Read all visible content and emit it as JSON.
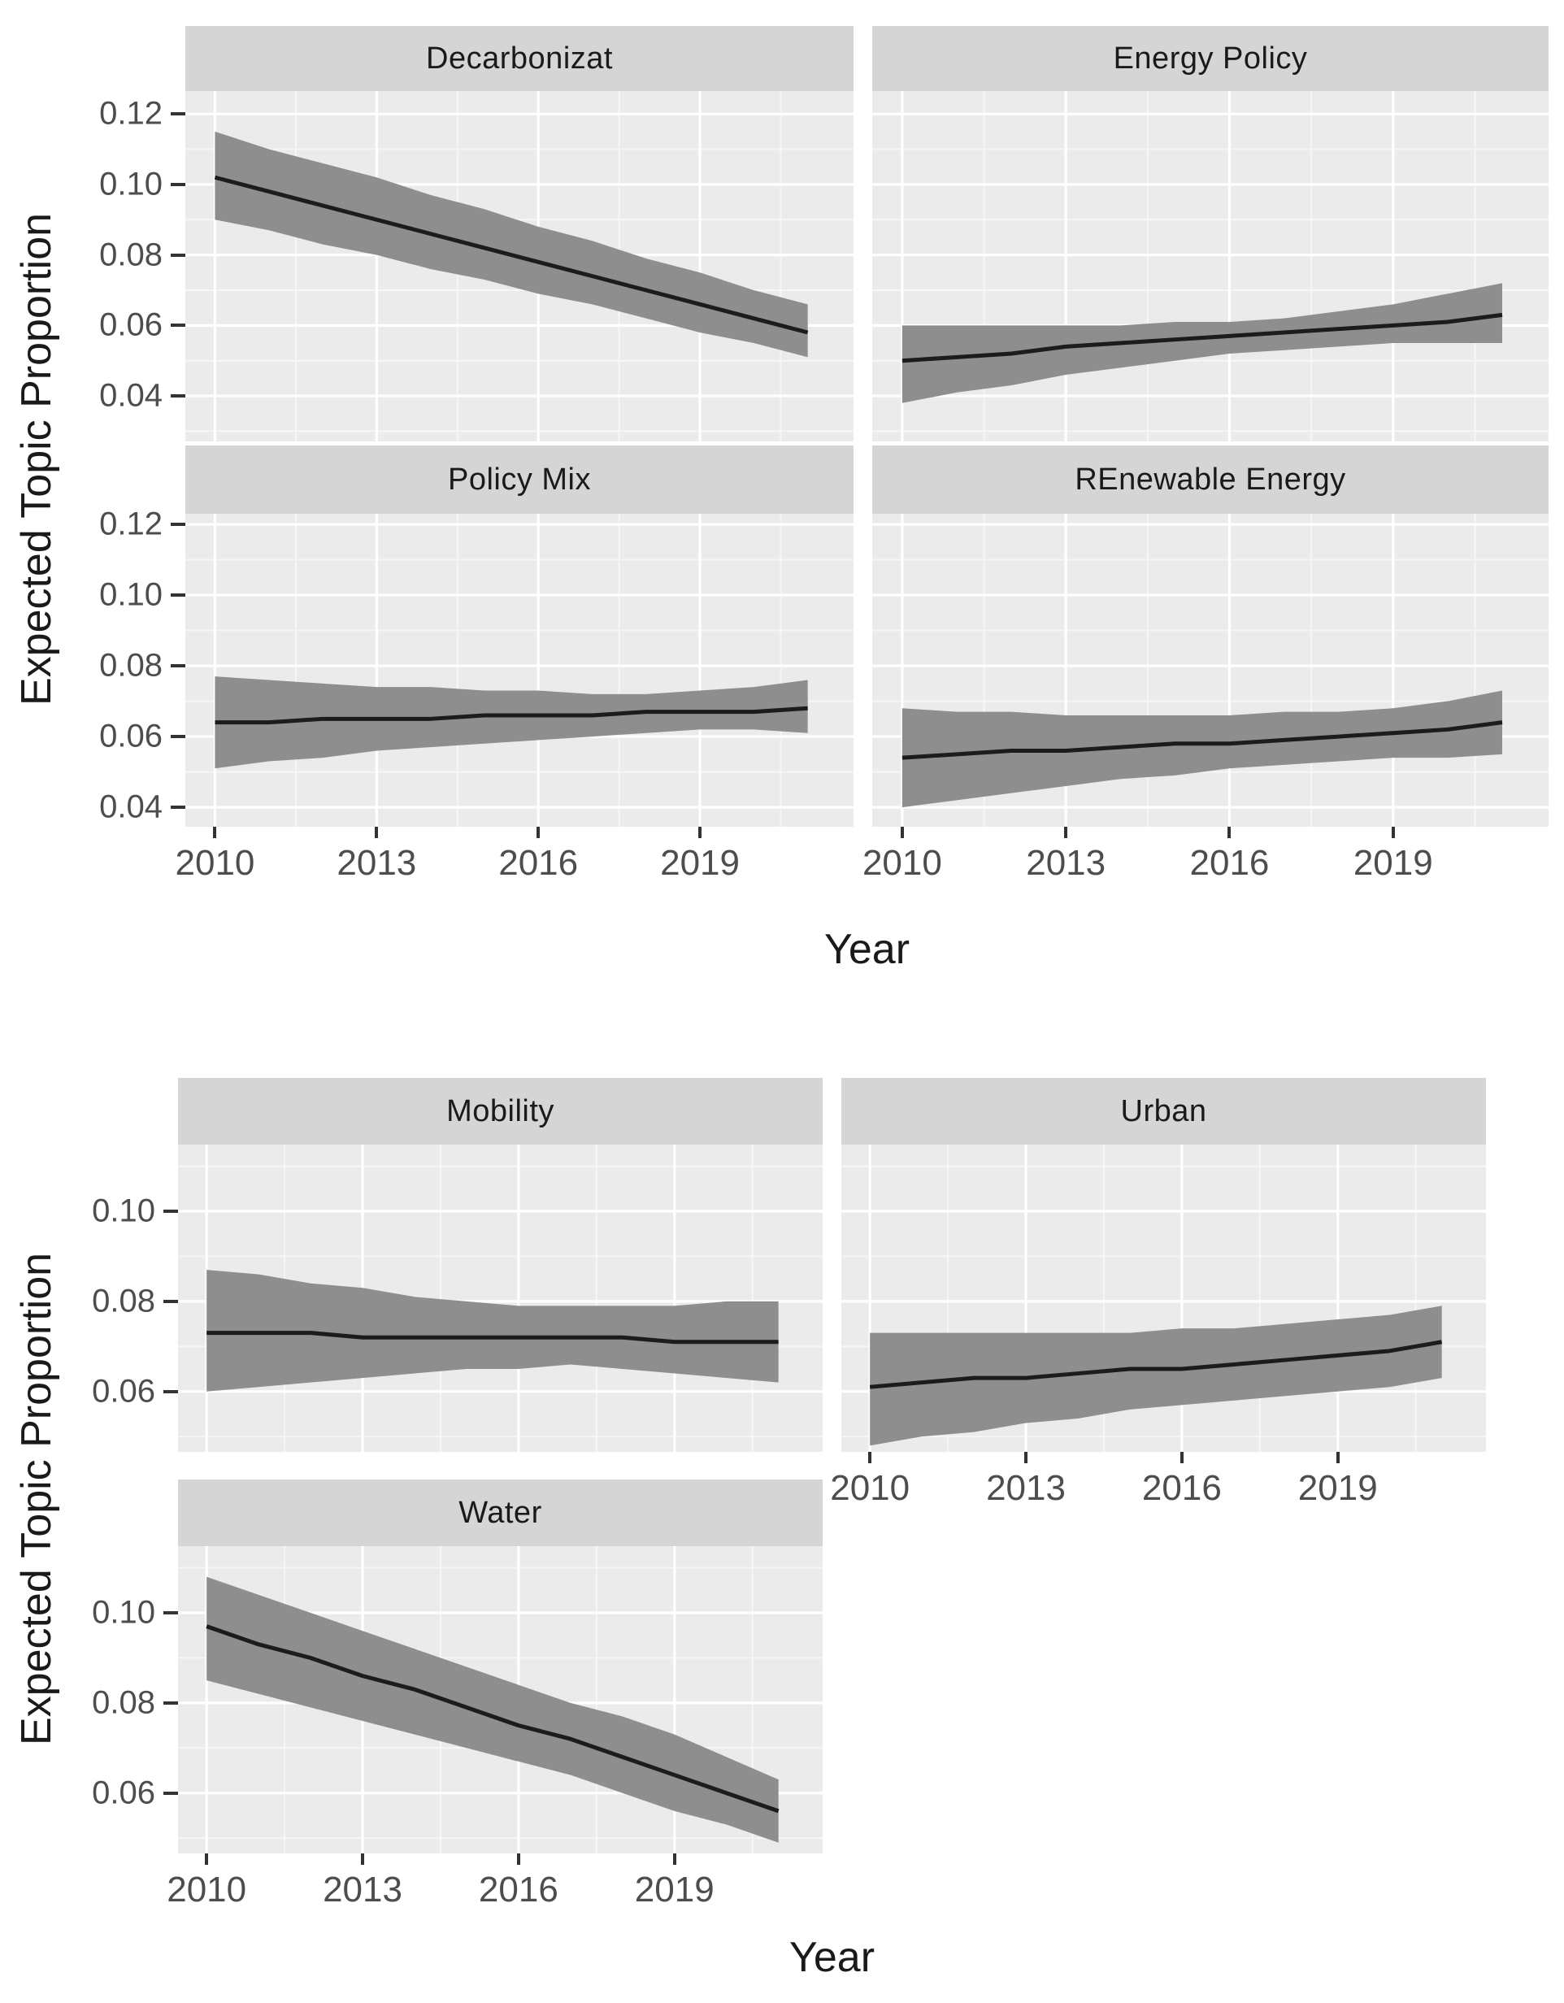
{
  "page_title": "Expected Topic Proportion trends by topic",
  "colors": {
    "panel_bg": "#ebebeb",
    "strip_bg": "#d5d5d5",
    "grid_major": "#ffffff",
    "grid_minor": "#f6f6f6",
    "band": "#8e8e8e",
    "line": "#1c1c1c",
    "tick_mark": "#333333",
    "tick_text": "#4d4d4d",
    "axis_title_text": "#1a1a1a"
  },
  "chart_data": [
    {
      "type": "line",
      "ribbon": true,
      "title": "",
      "ylabel": "Expected Topic Proportion",
      "xlabel": "Year",
      "legend_position": "none",
      "grid": true,
      "x": [
        2010,
        2011,
        2012,
        2013,
        2014,
        2015,
        2016,
        2017,
        2018,
        2019,
        2020,
        2021
      ],
      "x_breaks": [
        2010,
        2013,
        2016,
        2019
      ],
      "x_minor_breaks": [
        2011.5,
        2014.5,
        2017.5,
        2020.5
      ],
      "xlim": [
        2009.45,
        2021.85
      ],
      "y_breaks": [
        0.12,
        0.1,
        0.08,
        0.06,
        0.04
      ],
      "y_minor_breaks": [
        0.13,
        0.11,
        0.09,
        0.07,
        0.05,
        0.03
      ],
      "rows": [
        {
          "ylim": [
            0.0271,
            0.1265
          ]
        },
        {
          "ylim": [
            0.0345,
            0.123
          ]
        }
      ],
      "facets": [
        {
          "title": "Decarbonizat",
          "row": 0,
          "line": [
            0.102,
            0.098,
            0.094,
            0.09,
            0.086,
            0.082,
            0.078,
            0.074,
            0.07,
            0.066,
            0.062,
            0.058
          ],
          "upper": [
            0.115,
            0.11,
            0.106,
            0.102,
            0.097,
            0.093,
            0.088,
            0.084,
            0.079,
            0.075,
            0.07,
            0.066
          ],
          "lower": [
            0.09,
            0.087,
            0.083,
            0.08,
            0.076,
            0.073,
            0.069,
            0.066,
            0.062,
            0.058,
            0.055,
            0.051
          ]
        },
        {
          "title": "Energy Policy",
          "row": 0,
          "line": [
            0.05,
            0.051,
            0.052,
            0.054,
            0.055,
            0.056,
            0.057,
            0.058,
            0.059,
            0.06,
            0.061,
            0.063
          ],
          "upper": [
            0.06,
            0.06,
            0.06,
            0.06,
            0.06,
            0.061,
            0.061,
            0.062,
            0.064,
            0.066,
            0.069,
            0.072
          ],
          "lower": [
            0.038,
            0.041,
            0.043,
            0.046,
            0.048,
            0.05,
            0.052,
            0.053,
            0.054,
            0.055,
            0.055,
            0.055
          ]
        },
        {
          "title": "Policy Mix",
          "row": 1,
          "line": [
            0.064,
            0.064,
            0.065,
            0.065,
            0.065,
            0.066,
            0.066,
            0.066,
            0.067,
            0.067,
            0.067,
            0.068
          ],
          "upper": [
            0.077,
            0.076,
            0.075,
            0.074,
            0.074,
            0.073,
            0.073,
            0.072,
            0.072,
            0.073,
            0.074,
            0.076
          ],
          "lower": [
            0.051,
            0.053,
            0.054,
            0.056,
            0.057,
            0.058,
            0.059,
            0.06,
            0.061,
            0.062,
            0.062,
            0.061
          ]
        },
        {
          "title": "REnewable Energy",
          "row": 1,
          "line": [
            0.054,
            0.055,
            0.056,
            0.056,
            0.057,
            0.058,
            0.058,
            0.059,
            0.06,
            0.061,
            0.062,
            0.064
          ],
          "upper": [
            0.068,
            0.067,
            0.067,
            0.066,
            0.066,
            0.066,
            0.066,
            0.067,
            0.067,
            0.068,
            0.07,
            0.073
          ],
          "lower": [
            0.04,
            0.042,
            0.044,
            0.046,
            0.048,
            0.049,
            0.051,
            0.052,
            0.053,
            0.054,
            0.054,
            0.055
          ]
        }
      ]
    },
    {
      "type": "line",
      "ribbon": true,
      "title": "",
      "ylabel": "Expected Topic Proportion",
      "xlabel": "Year",
      "legend_position": "none",
      "grid": true,
      "x": [
        2010,
        2011,
        2012,
        2013,
        2014,
        2015,
        2016,
        2017,
        2018,
        2019,
        2020,
        2021
      ],
      "x_breaks": [
        2010,
        2013,
        2016,
        2019
      ],
      "x_minor_breaks": [
        2011.5,
        2014.5,
        2017.5,
        2020.5
      ],
      "xlim": [
        2009.45,
        2021.85
      ],
      "y_breaks": [
        0.1,
        0.08,
        0.06
      ],
      "y_minor_breaks": [
        0.11,
        0.09,
        0.07,
        0.05
      ],
      "rows": [
        {
          "ylim": [
            0.0466,
            0.1148
          ]
        },
        {
          "ylim": [
            0.0466,
            0.1148
          ]
        }
      ],
      "facets": [
        {
          "title": "Mobility",
          "row": 0,
          "line": [
            0.073,
            0.073,
            0.073,
            0.072,
            0.072,
            0.072,
            0.072,
            0.072,
            0.072,
            0.071,
            0.071,
            0.071
          ],
          "upper": [
            0.087,
            0.086,
            0.084,
            0.083,
            0.081,
            0.08,
            0.079,
            0.079,
            0.079,
            0.079,
            0.08,
            0.08
          ],
          "lower": [
            0.06,
            0.061,
            0.062,
            0.063,
            0.064,
            0.065,
            0.065,
            0.066,
            0.065,
            0.064,
            0.063,
            0.062
          ]
        },
        {
          "title": "Urban",
          "row": 0,
          "line": [
            0.061,
            0.062,
            0.063,
            0.063,
            0.064,
            0.065,
            0.065,
            0.066,
            0.067,
            0.068,
            0.069,
            0.071
          ],
          "upper": [
            0.073,
            0.073,
            0.073,
            0.073,
            0.073,
            0.073,
            0.074,
            0.074,
            0.075,
            0.076,
            0.077,
            0.079
          ],
          "lower": [
            0.048,
            0.05,
            0.051,
            0.053,
            0.054,
            0.056,
            0.057,
            0.058,
            0.059,
            0.06,
            0.061,
            0.063
          ]
        },
        {
          "title": "Water",
          "row": 1,
          "line": [
            0.097,
            0.093,
            0.09,
            0.086,
            0.083,
            0.079,
            0.075,
            0.072,
            0.068,
            0.064,
            0.06,
            0.056
          ],
          "upper": [
            0.108,
            0.104,
            0.1,
            0.096,
            0.092,
            0.088,
            0.084,
            0.08,
            0.077,
            0.073,
            0.068,
            0.063
          ],
          "lower": [
            0.085,
            0.082,
            0.079,
            0.076,
            0.073,
            0.07,
            0.067,
            0.064,
            0.06,
            0.056,
            0.053,
            0.049
          ]
        }
      ]
    }
  ]
}
